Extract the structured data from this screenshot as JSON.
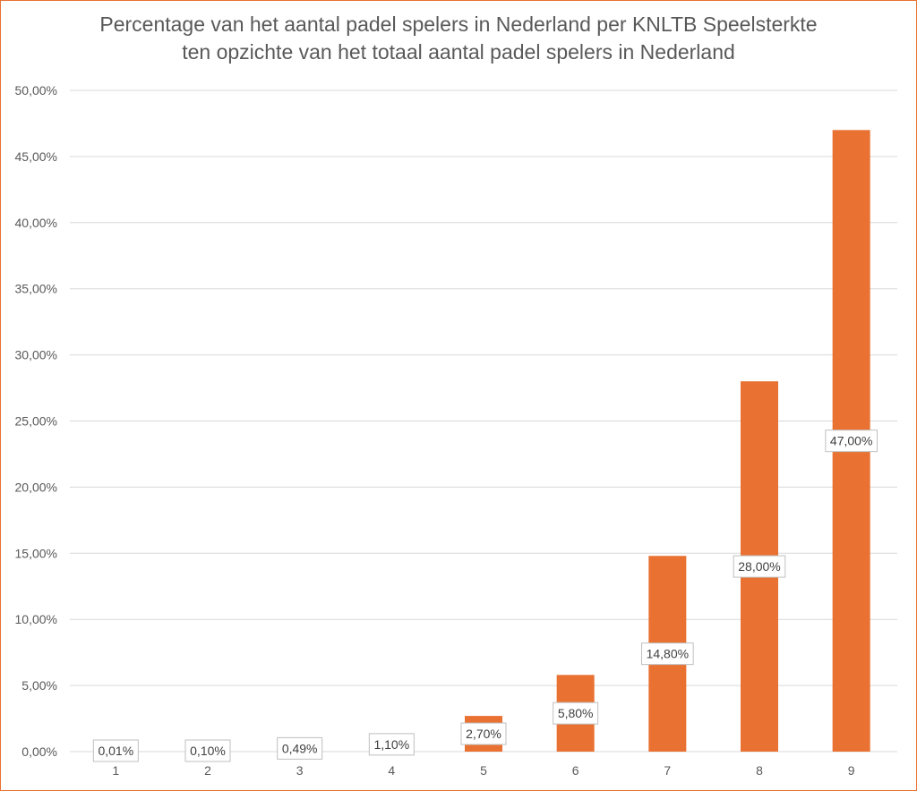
{
  "chart_data": {
    "type": "bar",
    "title_lines": [
      "Percentage van het aantal padel spelers in Nederland per KNLTB Speelsterkte",
      "ten opzichte van het totaal aantal padel spelers in Nederland"
    ],
    "xlabel": "",
    "ylabel": "",
    "categories": [
      "1",
      "2",
      "3",
      "4",
      "5",
      "6",
      "7",
      "8",
      "9"
    ],
    "values": [
      0.01,
      0.1,
      0.49,
      1.1,
      2.7,
      5.8,
      14.8,
      28.0,
      47.0
    ],
    "value_labels": [
      "0,01%",
      "0,10%",
      "0,49%",
      "1,10%",
      "2,70%",
      "5,80%",
      "14,80%",
      "28,00%",
      "47,00%"
    ],
    "ylim": [
      0,
      50
    ],
    "yticks": [
      0,
      5,
      10,
      15,
      20,
      25,
      30,
      35,
      40,
      45,
      50
    ],
    "ytick_labels": [
      "0,00%",
      "5,00%",
      "10,00%",
      "15,00%",
      "20,00%",
      "25,00%",
      "30,00%",
      "35,00%",
      "40,00%",
      "45,00%",
      "50,00%"
    ],
    "grid": true,
    "legend": "none",
    "colors": {
      "bar": "#E97132",
      "frame": "#E97132",
      "grid": "#D9D9D9",
      "text": "#595959",
      "label_border": "#BFBFBF"
    }
  }
}
